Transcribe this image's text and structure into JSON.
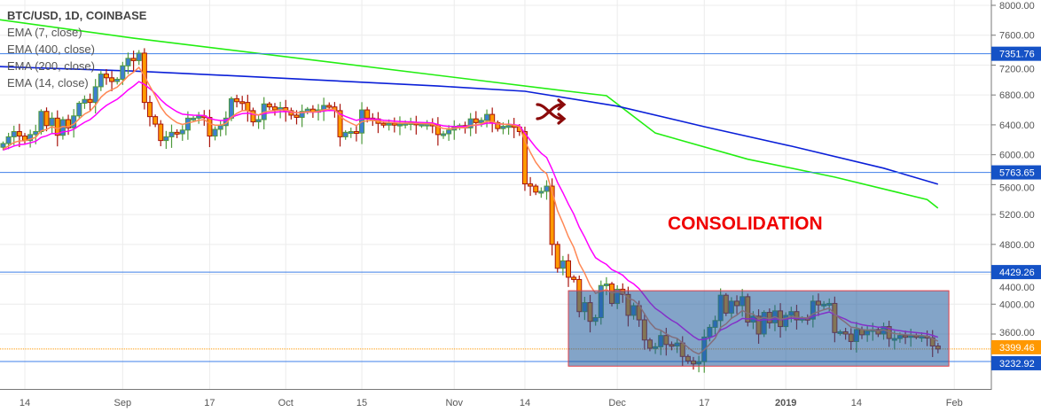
{
  "legend": {
    "title": "BTC/USD, 1D, COINBASE",
    "items": [
      "EMA (7, close)",
      "EMA (400, close)",
      "EMA (200, close)",
      "EMA (14, close)"
    ]
  },
  "colors": {
    "up_body": "#3d7fd0",
    "up_border": "#4f9a3c",
    "down_body": "#ff9a00",
    "down_border": "#a8140c",
    "ema7": "#ff8855",
    "ema14": "#ff00ff",
    "ema200": "#0a1fd8",
    "ema400": "#22ee11",
    "hline": "#3f7fe8",
    "last_price": "#ff9800",
    "label_bg": "#1552c6",
    "box_fill": "#1e5a9a",
    "box_border": "#e0404a",
    "annotation": "#f00000",
    "icon": "#8b0a0a"
  },
  "chart_data": {
    "type": "candlestick",
    "title": "BTC/USD, 1D, COINBASE",
    "first_date": "2018-08-10",
    "last_date": "2019-01-29",
    "close": [
      6150,
      6240,
      6310,
      6250,
      6190,
      6270,
      6310,
      6580,
      6390,
      6490,
      6260,
      6470,
      6360,
      6520,
      6690,
      6740,
      6700,
      6910,
      7080,
      7030,
      6980,
      7010,
      7190,
      7290,
      7260,
      7360,
      6700,
      6510,
      6410,
      6190,
      6240,
      6300,
      6280,
      6330,
      6490,
      6490,
      6520,
      6500,
      6250,
      6340,
      6390,
      6490,
      6750,
      6710,
      6700,
      6590,
      6440,
      6470,
      6680,
      6640,
      6600,
      6630,
      6590,
      6530,
      6500,
      6580,
      6610,
      6570,
      6600,
      6660,
      6640,
      6590,
      6240,
      6300,
      6310,
      6290,
      6600,
      6490,
      6480,
      6420,
      6400,
      6420,
      6410,
      6410,
      6420,
      6430,
      6400,
      6410,
      6410,
      6400,
      6270,
      6280,
      6330,
      6370,
      6390,
      6360,
      6480,
      6430,
      6460,
      6540,
      6430,
      6350,
      6380,
      6390,
      6370,
      6310,
      5610,
      5580,
      5500,
      5510,
      5580,
      4800,
      4480,
      4580,
      4360,
      4330,
      3900,
      4020,
      3770,
      3820,
      4250,
      4270,
      4010,
      4200,
      4130,
      3850,
      3980,
      3790,
      3520,
      3410,
      3430,
      3580,
      3460,
      3440,
      3480,
      3300,
      3240,
      3200,
      3230,
      3560,
      3690,
      3780,
      4120,
      3880,
      4040,
      3980,
      4100,
      3760,
      3840,
      3600,
      3890,
      3750,
      3910,
      3700,
      3850,
      3900,
      3790,
      3810,
      3800,
      4040,
      3990,
      4000,
      4010,
      3620,
      3630,
      3600,
      3500,
      3660,
      3590,
      3640,
      3660,
      3600,
      3700,
      3540,
      3540,
      3580,
      3560,
      3580,
      3570,
      3570,
      3550,
      3440,
      3400
    ],
    "ema400": [
      [
        "2018-08-09",
        7810
      ],
      [
        "2018-09-03",
        7560
      ],
      [
        "2018-11-22",
        6850
      ],
      [
        "2018-11-29",
        6790
      ],
      [
        "2018-12-08",
        6290
      ],
      [
        "2018-12-25",
        5940
      ],
      [
        "2019-01-10",
        5700
      ],
      [
        "2019-01-27",
        5400
      ],
      [
        "2019-01-29",
        5285
      ]
    ],
    "ema200": [
      [
        "2018-08-09",
        7180
      ],
      [
        "2018-09-03",
        7120
      ],
      [
        "2018-09-26",
        7040
      ],
      [
        "2018-10-29",
        6920
      ],
      [
        "2018-11-14",
        6850
      ],
      [
        "2018-12-01",
        6650
      ],
      [
        "2018-12-17",
        6375
      ],
      [
        "2019-01-02",
        6115
      ],
      [
        "2019-01-19",
        5820
      ],
      [
        "2019-01-29",
        5605
      ]
    ],
    "y_ticks": [
      "8000.00",
      "7600.00",
      "7200.00",
      "6800.00",
      "6400.00",
      "6000.00",
      "5600.00",
      "5200.00",
      "4800.00",
      "4400.00",
      "4000.00",
      "3600.00"
    ],
    "ylim": [
      3100,
      8000
    ],
    "x_ticks": [
      [
        "2018-08-14",
        "14"
      ],
      [
        "2018-09-01",
        "Sep"
      ],
      [
        "2018-09-17",
        "17"
      ],
      [
        "2018-10-01",
        "Oct"
      ],
      [
        "2018-10-15",
        "15"
      ],
      [
        "2018-11-01",
        "Nov"
      ],
      [
        "2018-11-14",
        "14"
      ],
      [
        "2018-12-01",
        "Dec"
      ],
      [
        "2018-12-17",
        "17"
      ],
      [
        "2019-01-01",
        "2019"
      ],
      [
        "2019-01-14",
        "14"
      ],
      [
        "2019-02-01",
        "Feb"
      ]
    ],
    "horizontal_levels": [
      {
        "value": 7351.76,
        "label": "7351.76"
      },
      {
        "value": 5763.65,
        "label": "5763.65"
      },
      {
        "value": 4429.26,
        "label": "4429.26"
      },
      {
        "value": 3232.92,
        "label": "3232.92"
      }
    ],
    "last_price": {
      "value": 3399.46,
      "label": "3399.46"
    },
    "consolidation_box": {
      "from": "2018-11-22",
      "to": "2019-01-31",
      "top": 4180,
      "bottom": 3170
    },
    "annotation": "CONSOLIDATION",
    "grid": true
  }
}
